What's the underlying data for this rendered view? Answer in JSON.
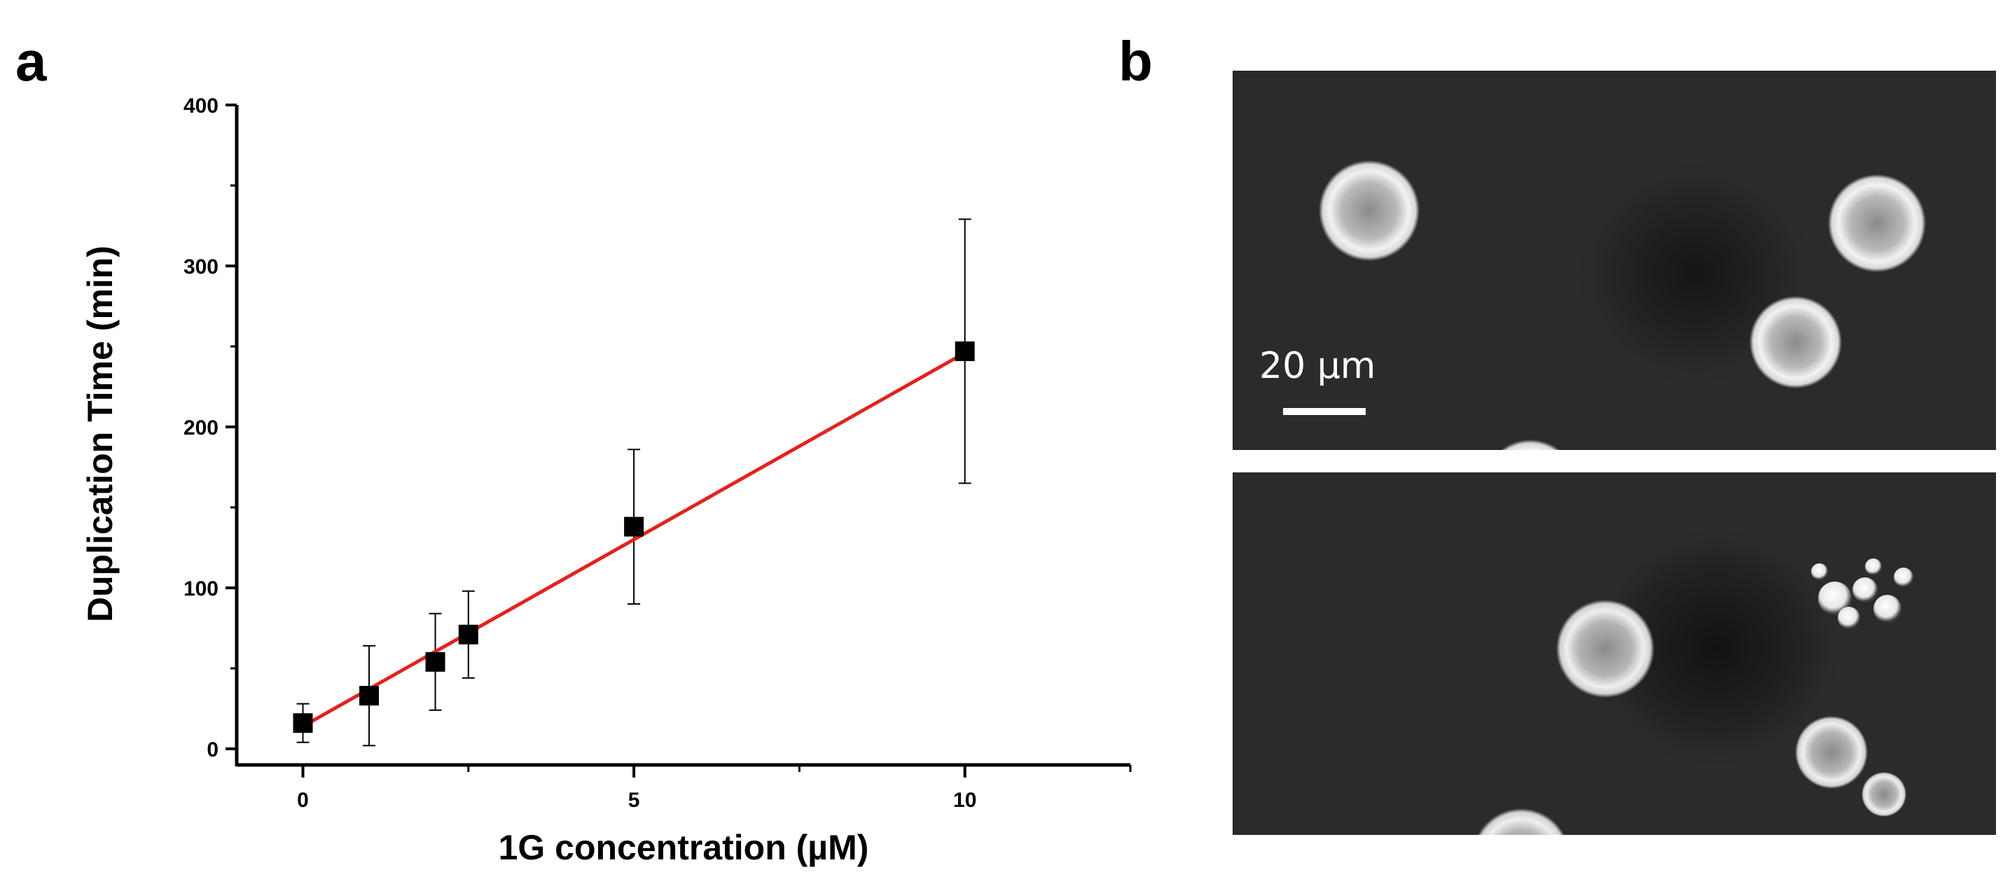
{
  "figure": {
    "panel_a_label": "a",
    "panel_b_label": "b",
    "scale_bar_label": "20 µm"
  },
  "chart_data": {
    "type": "scatter",
    "xlabel": "1G concentration (µM)",
    "ylabel": "Duplication Time (min)",
    "xlim": [
      -1,
      12.5
    ],
    "ylim": [
      -10,
      400
    ],
    "xticks": [
      0,
      5,
      10
    ],
    "yticks": [
      0,
      100,
      200,
      300,
      400
    ],
    "grid": false,
    "series": [
      {
        "points": [
          {
            "x": 0,
            "y": 16,
            "err": 12
          },
          {
            "x": 1,
            "y": 33,
            "err": 31
          },
          {
            "x": 2,
            "y": 54,
            "err": 30
          },
          {
            "x": 2.5,
            "y": 71,
            "err": 27
          },
          {
            "x": 5,
            "y": 138,
            "err": 48
          },
          {
            "x": 10,
            "y": 247,
            "err": 82
          }
        ]
      }
    ],
    "fit_line": {
      "color": "#e3221e",
      "x": [
        0,
        10
      ],
      "y": [
        14,
        246
      ]
    },
    "marker_color": "#000000"
  }
}
